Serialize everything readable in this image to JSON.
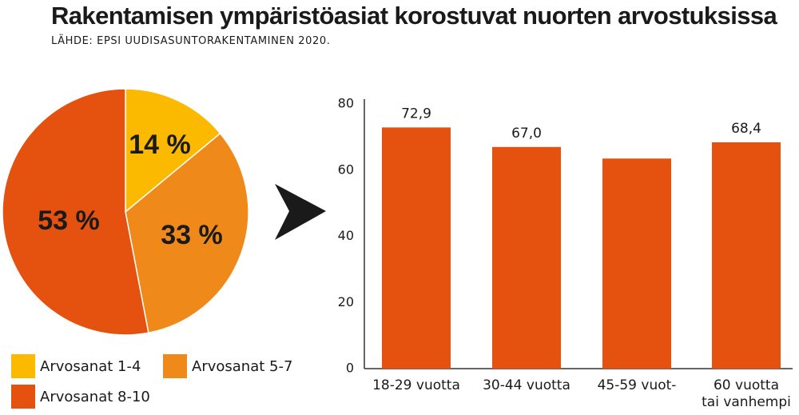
{
  "title": "Rakentamisen ympäristöasiat korostuvat nuorten arvostuksissa",
  "source": "LÄHDE: EPSI UUDISASUNTORAKENTAMINEN 2020.",
  "colors": {
    "yellow": "#fbba00",
    "light_orange": "#ef8a1a",
    "dark_orange": "#e5520f",
    "axis": "#333333",
    "text": "#1a1a1a"
  },
  "chart_data": [
    {
      "type": "pie",
      "title": "",
      "slices": [
        {
          "label": "Arvosanat 1-4",
          "value": 14,
          "value_label": "14 %",
          "color": "#fbba00"
        },
        {
          "label": "Arvosanat 5-7",
          "value": 33,
          "value_label": "33 %",
          "color": "#ef8a1a"
        },
        {
          "label": "Arvosanat 8-10",
          "value": 53,
          "value_label": "53 %",
          "color": "#e5520f"
        }
      ],
      "legend_position": "bottom"
    },
    {
      "type": "bar",
      "title": "",
      "xlabel": "",
      "ylabel": "",
      "categories": [
        {
          "line1": "18-29 vuotta",
          "line2": ""
        },
        {
          "line1": "30-44 vuotta",
          "line2": ""
        },
        {
          "line1": "45-59 vuot-",
          "line2": ""
        },
        {
          "line1": "60 vuotta",
          "line2": "tai vanhempi"
        }
      ],
      "values": [
        72.9,
        67.0,
        63.5,
        68.4
      ],
      "data_labels": [
        "72,9",
        "67,0",
        "",
        "68,4"
      ],
      "ylim": [
        0,
        80
      ],
      "yticks": [
        0,
        20,
        40,
        60,
        80
      ],
      "grid": false,
      "color": "#e5520f"
    }
  ]
}
